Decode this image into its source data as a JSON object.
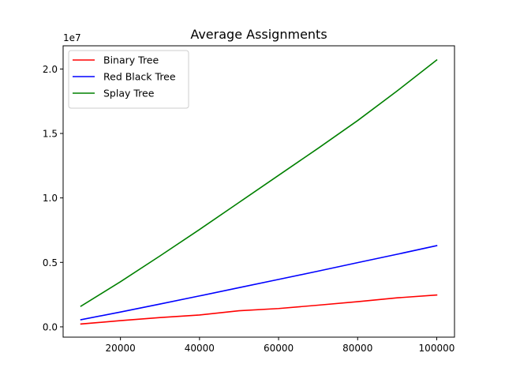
{
  "chart_data": {
    "type": "line",
    "title": "Average Assignments",
    "xlabel": "",
    "ylabel": "",
    "y_offset_label": "1e7",
    "x": [
      10000,
      20000,
      30000,
      40000,
      50000,
      60000,
      70000,
      80000,
      90000,
      100000
    ],
    "xlim": [
      5500,
      104500
    ],
    "ylim": [
      -0.08,
      2.18
    ],
    "y_scale_note": "values in units of 1e7",
    "x_ticks": [
      20000,
      40000,
      60000,
      80000,
      100000
    ],
    "x_tick_labels": [
      "20000",
      "40000",
      "60000",
      "80000",
      "100000"
    ],
    "y_ticks": [
      0.0,
      0.5,
      1.0,
      1.5,
      2.0
    ],
    "y_tick_labels": [
      "0.0",
      "0.5",
      "1.0",
      "1.5",
      "2.0"
    ],
    "grid": false,
    "legend_position": "top-left",
    "series": [
      {
        "name": "Binary Tree",
        "color": "#ff0000",
        "values": [
          0.022,
          0.048,
          0.072,
          0.092,
          0.125,
          0.142,
          0.168,
          0.195,
          0.225,
          0.247
        ]
      },
      {
        "name": "Red Black Tree",
        "color": "#0000ff",
        "values": [
          0.055,
          0.115,
          0.177,
          0.24,
          0.304,
          0.368,
          0.432,
          0.498,
          0.563,
          0.63
        ]
      },
      {
        "name": "Splay Tree",
        "color": "#008000",
        "values": [
          0.16,
          0.35,
          0.55,
          0.755,
          0.965,
          1.175,
          1.385,
          1.6,
          1.83,
          2.07
        ]
      }
    ]
  }
}
